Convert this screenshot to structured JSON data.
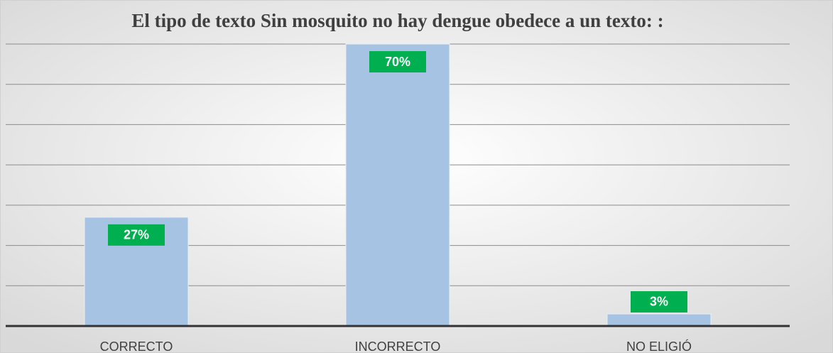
{
  "chart_data": {
    "type": "bar",
    "title": "El tipo de texto Sin mosquito no hay dengue obedece a un texto: :",
    "categories": [
      "CORRECTO",
      "INCORRECTO",
      "NO ELIGIÓ"
    ],
    "values": [
      27,
      70,
      3
    ],
    "value_labels": [
      "27%",
      "70%",
      "3%"
    ],
    "color": "#a6c3e3",
    "label_color": "#00b050",
    "ylim": [
      0,
      70
    ],
    "yticks": [
      0,
      10,
      20,
      30,
      40,
      50,
      60,
      70
    ],
    "grid": true
  }
}
